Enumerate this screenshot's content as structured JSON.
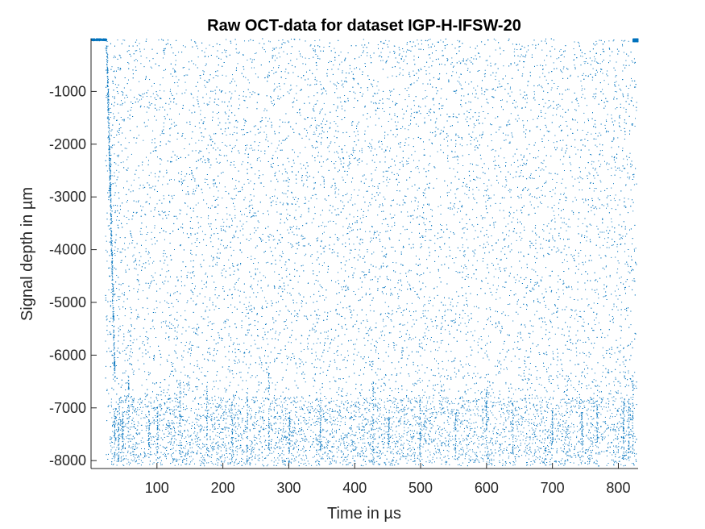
{
  "chart_data": {
    "type": "scatter",
    "title": "Raw OCT-data for dataset IGP-H-IFSW-20",
    "xlabel": "Time in µs",
    "ylabel": "Signal depth in µm",
    "xlim": [
      0,
      830
    ],
    "ylim": [
      -8150,
      0
    ],
    "xticks": [
      100,
      200,
      300,
      400,
      500,
      600,
      700,
      800
    ],
    "xtick_labels": [
      "100",
      "200",
      "300",
      "400",
      "500",
      "600",
      "700",
      "800"
    ],
    "yticks": [
      -1000,
      -2000,
      -3000,
      -4000,
      -5000,
      -6000,
      -7000,
      -8000
    ],
    "ytick_labels": [
      "-1000",
      "-2000",
      "-3000",
      "-4000",
      "-5000",
      "-6000",
      "-7000",
      "-8000"
    ],
    "grid": false,
    "marker": "point",
    "series_color": "#0072BD",
    "description": "Dense noisy scatter of single OCT depth readings: surface signal near 0 µm at start (t≈0–25) and end (t≈825), steep descent of points near t≈25–35 down to about -6000 µm, and vertical streaks clustered near the bottom (-7000 to -8100 µm).",
    "series": [
      {
        "values": [
          [
            0,
            -5
          ],
          [
            5,
            -10
          ],
          [
            10,
            -8
          ],
          [
            15,
            -6
          ],
          [
            20,
            -12
          ],
          [
            25,
            -1500
          ],
          [
            27,
            -3000
          ],
          [
            28,
            -4500
          ],
          [
            30,
            -5600
          ],
          [
            32,
            -6000
          ],
          [
            35,
            -6200
          ],
          [
            45,
            -6800
          ],
          [
            55,
            -7200
          ],
          [
            70,
            -7500
          ],
          [
            90,
            -7300
          ],
          [
            100,
            -7600
          ],
          [
            120,
            -7100
          ],
          [
            150,
            -7700
          ],
          [
            177,
            -7900
          ],
          [
            200,
            -7400
          ],
          [
            230,
            -7800
          ],
          [
            240,
            -7950
          ],
          [
            270,
            -7300
          ],
          [
            300,
            -7600
          ],
          [
            350,
            -7700
          ],
          [
            400,
            -7800
          ],
          [
            425,
            -8000
          ],
          [
            450,
            -7500
          ],
          [
            500,
            -7600
          ],
          [
            550,
            -7700
          ],
          [
            600,
            -7900
          ],
          [
            650,
            -7800
          ],
          [
            700,
            -7500
          ],
          [
            750,
            -7850
          ],
          [
            770,
            -8100
          ],
          [
            810,
            -7900
          ],
          [
            820,
            -6500
          ],
          [
            825,
            -10
          ],
          [
            828,
            -5
          ]
        ]
      }
    ]
  }
}
